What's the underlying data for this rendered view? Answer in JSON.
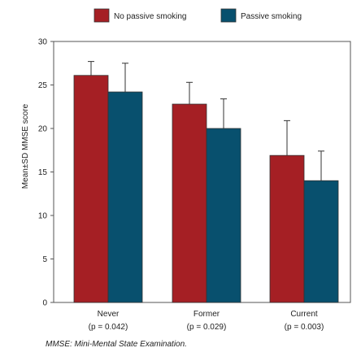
{
  "chart_data": {
    "type": "bar",
    "ylabel": "Mean±SD MMSE score",
    "ylim": [
      0,
      30
    ],
    "yticks": [
      0,
      5,
      10,
      15,
      20,
      25,
      30
    ],
    "categories": [
      "Never",
      "Former",
      "Current"
    ],
    "category_notes": [
      "(p = 0.042)",
      "(p = 0.029)",
      "(p = 0.003)"
    ],
    "legend_position": "top",
    "grid": false,
    "series": [
      {
        "name": "No passive smoking",
        "color": "#a51f24",
        "values": [
          26.1,
          22.8,
          16.9
        ],
        "sd": [
          1.6,
          2.5,
          4.0
        ]
      },
      {
        "name": "Passive smoking",
        "color": "#08506e",
        "values": [
          24.2,
          20.0,
          14.0
        ],
        "sd": [
          3.3,
          3.4,
          3.4
        ]
      }
    ]
  },
  "footnote": "MMSE: Mini-Mental State Examination."
}
